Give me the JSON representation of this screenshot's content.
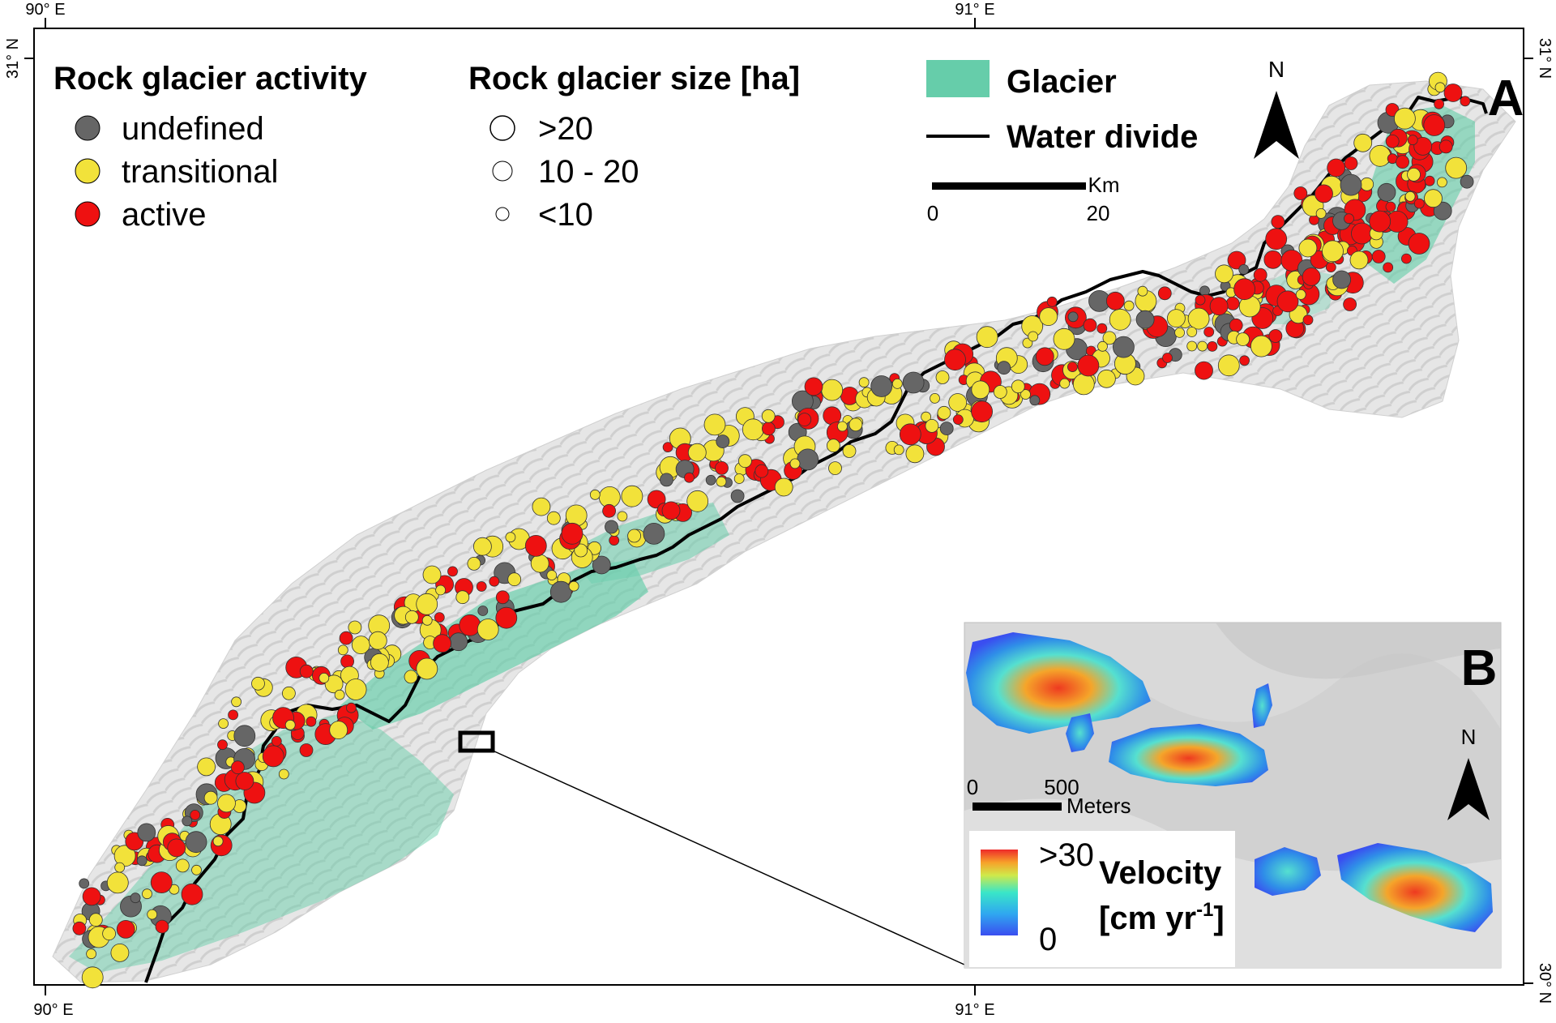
{
  "frame": {
    "coords": {
      "top_left": "90° E",
      "top_mid": "91° E",
      "bottom_left": "90° E",
      "bottom_mid": "91° E",
      "left_top": "31° N",
      "right_top": "31° N",
      "right_bottom": "30° N"
    }
  },
  "panel_a": {
    "letter": "A",
    "legend_activity": {
      "title": "Rock glacier activity",
      "items": [
        {
          "label": "undefined",
          "color": "#666666"
        },
        {
          "label": "transitional",
          "color": "#f2e23a"
        },
        {
          "label": "active",
          "color": "#ee1111"
        }
      ]
    },
    "legend_size": {
      "title": "Rock glacier size [ha]",
      "items": [
        {
          "label": ">20"
        },
        {
          "label": "10 - 20"
        },
        {
          "label": "<10"
        }
      ]
    },
    "legend_features": {
      "glacier": {
        "label": "Glacier",
        "color": "#66cdaa"
      },
      "divide": {
        "label": "Water divide",
        "color": "#000000"
      }
    },
    "scalebar": {
      "unit": "Km",
      "start": "0",
      "end": "20"
    },
    "north": "N"
  },
  "panel_b": {
    "letter": "B",
    "north": "N",
    "scalebar": {
      "start": "0",
      "end": "500",
      "unit": "Meters"
    },
    "colorbar": {
      "max": ">30",
      "min": "0",
      "title_line1": "Velocity",
      "title_line2": "[cm yr",
      "title_sup": "-1",
      "title_end": "]"
    }
  },
  "colors": {
    "glacier": "#66cdaa",
    "undefined": "#666666",
    "transitional": "#f2e23a",
    "active": "#ee1111",
    "hillshade": "#e4e4e4"
  }
}
